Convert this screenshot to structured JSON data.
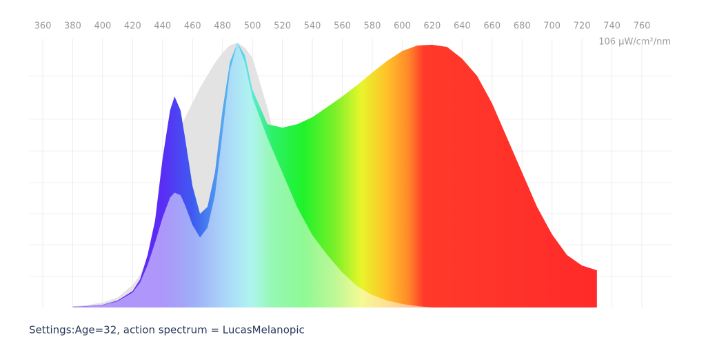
{
  "chart_data": {
    "type": "area",
    "y_label": "106 µW/cm²/nm",
    "caption": "Settings:Age=32, action spectrum = LucasMelanopic",
    "x": [
      380,
      390,
      400,
      410,
      420,
      425,
      430,
      435,
      440,
      445,
      448,
      452,
      455,
      460,
      465,
      470,
      475,
      480,
      485,
      490,
      495,
      500,
      510,
      520,
      530,
      540,
      550,
      560,
      570,
      580,
      590,
      600,
      610,
      620,
      630,
      640,
      650,
      660,
      670,
      680,
      690,
      700,
      710,
      720,
      730
    ],
    "series": [
      {
        "color": "#e3e3e3",
        "values": [
          0.5,
          1,
          2,
          4,
          9,
          13,
          20,
          30,
          45,
          58,
          65,
          72,
          76,
          82,
          88,
          93,
          98,
          102,
          105,
          106,
          104,
          100,
          80,
          55,
          35,
          22,
          14,
          8,
          5,
          2.5,
          1.2,
          0.5,
          0.2,
          0,
          0,
          0,
          0,
          0,
          0,
          0,
          0,
          0,
          0,
          0,
          0
        ]
      },
      {
        "values": [
          0.3,
          0.6,
          1.1,
          2.8,
          6.6,
          11.3,
          21,
          34.8,
          59.6,
          78.9,
          84.5,
          78.9,
          67.9,
          48.6,
          37.5,
          40.3,
          54.1,
          78.9,
          98.3,
          106,
          101,
          87.2,
          73.4,
          72,
          73.4,
          76.2,
          80.3,
          84.5,
          89.1,
          94.1,
          98.8,
          102.7,
          104.9,
          105.2,
          104.3,
          99.6,
          92.7,
          81.7,
          67.9,
          54.1,
          40.3,
          29.3,
          21,
          16.8,
          14.9
        ]
      },
      {
        "values": [
          0.3,
          0.5,
          1,
          2.5,
          6,
          10,
          17,
          26,
          36,
          44,
          46,
          45,
          41,
          33,
          28,
          32,
          45,
          70,
          95,
          106,
          98,
          84,
          68,
          54,
          40,
          29,
          21,
          14,
          8.5,
          5,
          2.8,
          1.4,
          0.6,
          0,
          0,
          0,
          0,
          0,
          0,
          0,
          0,
          0,
          0,
          0,
          0
        ]
      }
    ],
    "xlim": [
      360,
      760
    ],
    "ylim": [
      0,
      106
    ],
    "xticks": [
      360,
      380,
      400,
      420,
      440,
      460,
      480,
      500,
      520,
      540,
      560,
      580,
      600,
      620,
      640,
      660,
      680,
      700,
      720,
      740,
      760
    ],
    "grid": true
  }
}
